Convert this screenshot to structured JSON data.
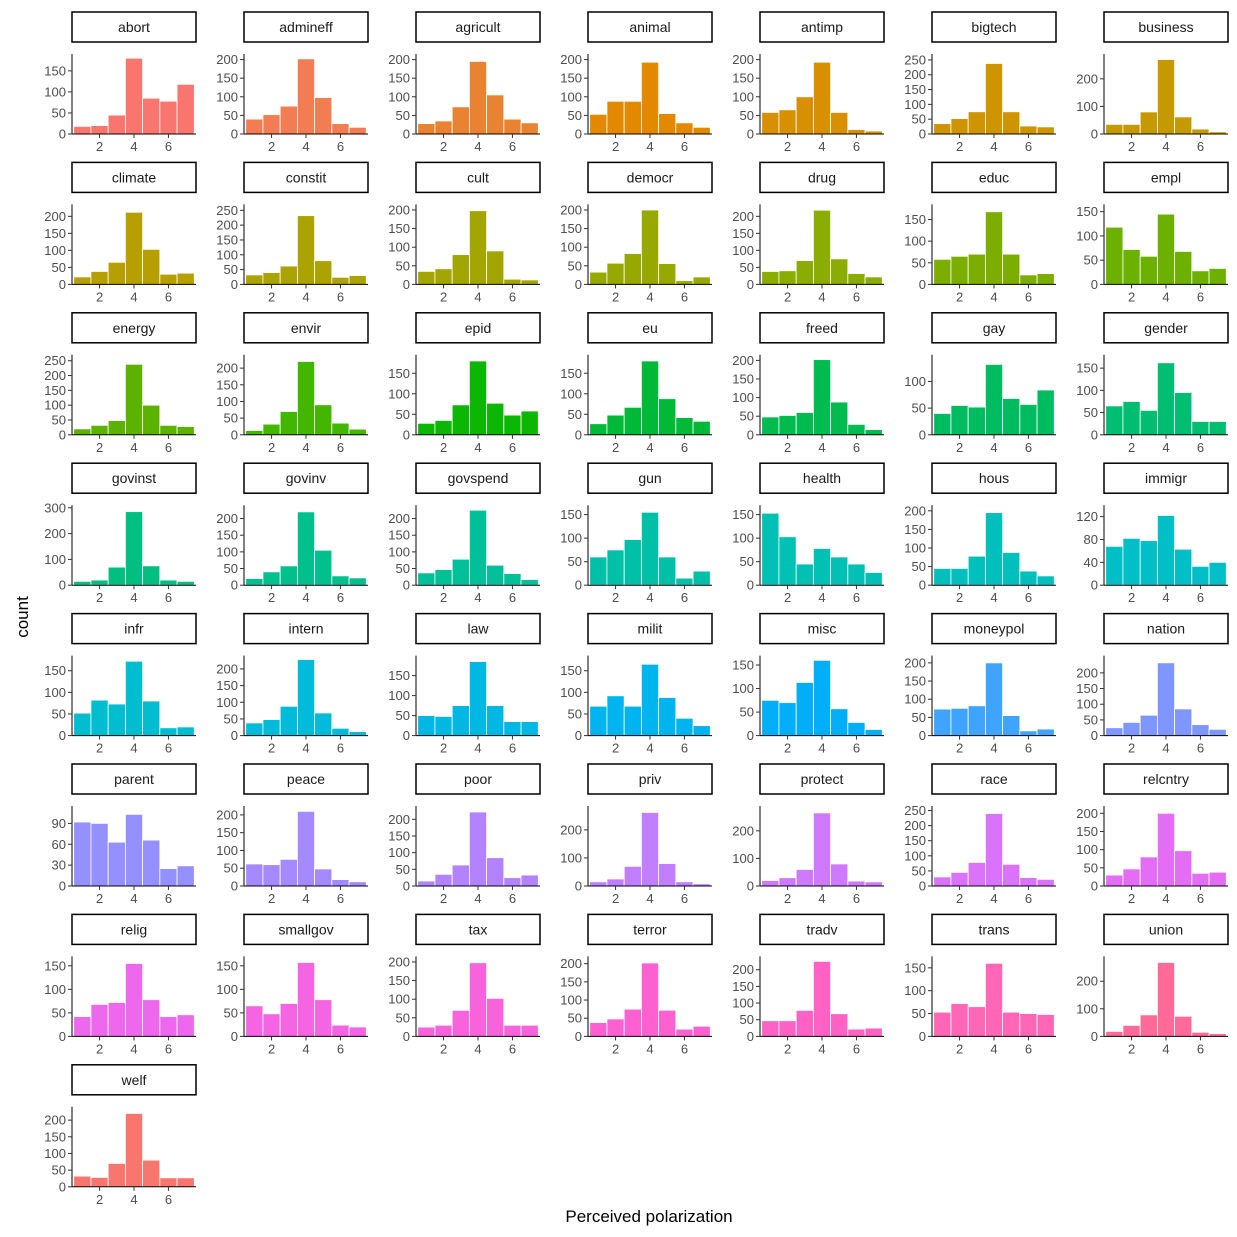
{
  "chart_data": {
    "type": "bar",
    "subtype": "faceted-histogram",
    "xlabel": "Perceived polarization",
    "ylabel": "count",
    "x": [
      1,
      2,
      3,
      4,
      5,
      6,
      7
    ],
    "x_ticks": [
      2,
      4,
      6
    ],
    "xlim": [
      0.4,
      7.6
    ],
    "facet_columns": 7,
    "grid": false,
    "legend": "none",
    "panels": [
      {
        "name": "abort",
        "color": "#F8766D",
        "ylim": [
          0,
          190
        ],
        "y_ticks": [
          0,
          50,
          100,
          150
        ],
        "values": [
          18,
          20,
          45,
          180,
          85,
          78,
          118
        ]
      },
      {
        "name": "admineff",
        "color": "#F27D52",
        "ylim": [
          0,
          215
        ],
        "y_ticks": [
          0,
          50,
          100,
          150,
          200
        ],
        "values": [
          40,
          52,
          75,
          202,
          98,
          28,
          18
        ]
      },
      {
        "name": "agricult",
        "color": "#EA8331",
        "ylim": [
          0,
          215
        ],
        "y_ticks": [
          0,
          50,
          100,
          150,
          200
        ],
        "values": [
          28,
          35,
          73,
          195,
          105,
          40,
          30
        ]
      },
      {
        "name": "animal",
        "color": "#E38900",
        "ylim": [
          0,
          215
        ],
        "y_ticks": [
          0,
          50,
          100,
          150,
          200
        ],
        "values": [
          53,
          88,
          88,
          193,
          55,
          30,
          18
        ]
      },
      {
        "name": "antimp",
        "color": "#D89000",
        "ylim": [
          0,
          215
        ],
        "y_ticks": [
          0,
          50,
          100,
          150,
          200
        ],
        "values": [
          58,
          65,
          100,
          193,
          58,
          12,
          8
        ]
      },
      {
        "name": "bigtech",
        "color": "#CF9500",
        "ylim": [
          0,
          270
        ],
        "y_ticks": [
          0,
          50,
          100,
          150,
          200,
          250
        ],
        "values": [
          35,
          52,
          75,
          238,
          75,
          27,
          24
        ]
      },
      {
        "name": "business",
        "color": "#C49A00",
        "ylim": [
          0,
          290
        ],
        "y_ticks": [
          0,
          100,
          200
        ],
        "values": [
          35,
          35,
          80,
          270,
          62,
          18,
          8
        ]
      },
      {
        "name": "climate",
        "color": "#B89F00",
        "ylim": [
          0,
          235
        ],
        "y_ticks": [
          0,
          50,
          100,
          150,
          200
        ],
        "values": [
          22,
          38,
          65,
          212,
          103,
          30,
          33
        ]
      },
      {
        "name": "constit",
        "color": "#ABA300",
        "ylim": [
          0,
          270
        ],
        "y_ticks": [
          0,
          50,
          100,
          150,
          200,
          250
        ],
        "values": [
          32,
          40,
          62,
          232,
          80,
          24,
          30
        ]
      },
      {
        "name": "cult",
        "color": "#A3A500",
        "ylim": [
          0,
          215
        ],
        "y_ticks": [
          0,
          50,
          100,
          150,
          200
        ],
        "values": [
          35,
          42,
          80,
          198,
          90,
          14,
          12
        ]
      },
      {
        "name": "democr",
        "color": "#97A900",
        "ylim": [
          0,
          215
        ],
        "y_ticks": [
          0,
          50,
          100,
          150,
          200
        ],
        "values": [
          33,
          57,
          83,
          200,
          56,
          10,
          20
        ]
      },
      {
        "name": "drug",
        "color": "#8BAC00",
        "ylim": [
          0,
          235
        ],
        "y_ticks": [
          0,
          50,
          100,
          150,
          200
        ],
        "values": [
          38,
          40,
          70,
          218,
          75,
          32,
          22
        ]
      },
      {
        "name": "educ",
        "color": "#7CAE00",
        "ylim": [
          0,
          185
        ],
        "y_ticks": [
          0,
          50,
          100,
          150
        ],
        "values": [
          58,
          65,
          70,
          168,
          70,
          22,
          25
        ]
      },
      {
        "name": "empl",
        "color": "#6DB100",
        "ylim": [
          0,
          165
        ],
        "y_ticks": [
          0,
          50,
          100,
          150
        ],
        "values": [
          118,
          72,
          58,
          145,
          68,
          28,
          33
        ]
      },
      {
        "name": "energy",
        "color": "#5BB300",
        "ylim": [
          0,
          270
        ],
        "y_ticks": [
          0,
          50,
          100,
          150,
          200,
          250
        ],
        "values": [
          20,
          32,
          48,
          238,
          100,
          32,
          28
        ]
      },
      {
        "name": "envir",
        "color": "#43B600",
        "ylim": [
          0,
          240
        ],
        "y_ticks": [
          0,
          50,
          100,
          150,
          200
        ],
        "values": [
          13,
          32,
          70,
          220,
          90,
          35,
          17
        ]
      },
      {
        "name": "epid",
        "color": "#0BB702",
        "ylim": [
          0,
          195
        ],
        "y_ticks": [
          0,
          50,
          100,
          150
        ],
        "values": [
          28,
          35,
          73,
          180,
          77,
          48,
          58
        ]
      },
      {
        "name": "eu",
        "color": "#00B937",
        "ylim": [
          0,
          195
        ],
        "y_ticks": [
          0,
          50,
          100,
          150
        ],
        "values": [
          27,
          48,
          67,
          180,
          88,
          42,
          33
        ]
      },
      {
        "name": "freed",
        "color": "#00BB4E",
        "ylim": [
          0,
          215
        ],
        "y_ticks": [
          0,
          50,
          100,
          150,
          200
        ],
        "values": [
          48,
          52,
          60,
          202,
          88,
          28,
          14
        ]
      },
      {
        "name": "gay",
        "color": "#00BC61",
        "ylim": [
          0,
          150
        ],
        "y_ticks": [
          0,
          50,
          100
        ],
        "values": [
          40,
          55,
          52,
          132,
          68,
          57,
          84
        ]
      },
      {
        "name": "gender",
        "color": "#00BE71",
        "ylim": [
          0,
          180
        ],
        "y_ticks": [
          0,
          50,
          100,
          150
        ],
        "values": [
          65,
          75,
          55,
          162,
          95,
          30,
          30
        ]
      },
      {
        "name": "govinst",
        "color": "#00BF80",
        "ylim": [
          0,
          310
        ],
        "y_ticks": [
          0,
          100,
          200,
          300
        ],
        "values": [
          15,
          20,
          70,
          285,
          75,
          20,
          15
        ]
      },
      {
        "name": "govinv",
        "color": "#00C08D",
        "ylim": [
          0,
          240
        ],
        "y_ticks": [
          0,
          50,
          100,
          150,
          200
        ],
        "values": [
          20,
          40,
          58,
          220,
          105,
          28,
          22
        ]
      },
      {
        "name": "govspend",
        "color": "#00C09A",
        "ylim": [
          0,
          240
        ],
        "y_ticks": [
          0,
          50,
          100,
          150,
          200
        ],
        "values": [
          37,
          47,
          78,
          225,
          60,
          35,
          17
        ]
      },
      {
        "name": "gun",
        "color": "#00C1A7",
        "ylim": [
          0,
          170
        ],
        "y_ticks": [
          0,
          50,
          100,
          150
        ],
        "values": [
          60,
          75,
          97,
          155,
          60,
          15,
          30
        ]
      },
      {
        "name": "health",
        "color": "#00C1B3",
        "ylim": [
          0,
          170
        ],
        "y_ticks": [
          0,
          50,
          100,
          150
        ],
        "values": [
          153,
          103,
          45,
          78,
          60,
          45,
          27
        ]
      },
      {
        "name": "hous",
        "color": "#00C0BE",
        "ylim": [
          0,
          215
        ],
        "y_ticks": [
          0,
          50,
          100,
          150,
          200
        ],
        "values": [
          45,
          45,
          78,
          195,
          88,
          38,
          25
        ]
      },
      {
        "name": "immigr",
        "color": "#00BFC7",
        "ylim": [
          0,
          140
        ],
        "y_ticks": [
          0,
          40,
          80,
          120
        ],
        "values": [
          68,
          82,
          78,
          122,
          63,
          33,
          40
        ]
      },
      {
        "name": "infr",
        "color": "#00BDD0",
        "ylim": [
          0,
          185
        ],
        "y_ticks": [
          0,
          50,
          100,
          150
        ],
        "values": [
          52,
          82,
          73,
          172,
          80,
          18,
          20
        ]
      },
      {
        "name": "intern",
        "color": "#00BBDA",
        "ylim": [
          0,
          240
        ],
        "y_ticks": [
          0,
          50,
          100,
          150,
          200
        ],
        "values": [
          38,
          48,
          88,
          228,
          68,
          22,
          12
        ]
      },
      {
        "name": "law",
        "color": "#00B8E3",
        "ylim": [
          0,
          200
        ],
        "y_ticks": [
          0,
          50,
          100,
          150
        ],
        "values": [
          50,
          48,
          75,
          185,
          75,
          35,
          35
        ]
      },
      {
        "name": "milit",
        "color": "#00B4EF",
        "ylim": [
          0,
          185
        ],
        "y_ticks": [
          0,
          50,
          100,
          150
        ],
        "values": [
          68,
          92,
          68,
          165,
          88,
          40,
          23
        ]
      },
      {
        "name": "misc",
        "color": "#00AFF8",
        "ylim": [
          0,
          170
        ],
        "y_ticks": [
          0,
          50,
          100,
          150
        ],
        "values": [
          75,
          70,
          113,
          160,
          57,
          28,
          13
        ]
      },
      {
        "name": "moneypol",
        "color": "#3EA4FF",
        "ylim": [
          0,
          220
        ],
        "y_ticks": [
          0,
          50,
          100,
          150,
          200
        ],
        "values": [
          73,
          75,
          82,
          200,
          55,
          13,
          18
        ]
      },
      {
        "name": "nation",
        "color": "#7F96FF",
        "ylim": [
          0,
          255
        ],
        "y_ticks": [
          0,
          50,
          100,
          150,
          200
        ],
        "values": [
          25,
          42,
          65,
          232,
          85,
          35,
          20
        ]
      },
      {
        "name": "parent",
        "color": "#9590FF",
        "ylim": [
          0,
          115
        ],
        "y_ticks": [
          0,
          30,
          60,
          90
        ],
        "values": [
          92,
          90,
          63,
          103,
          66,
          25,
          29
        ]
      },
      {
        "name": "peace",
        "color": "#A58AFF",
        "ylim": [
          0,
          225
        ],
        "y_ticks": [
          0,
          50,
          100,
          150,
          200
        ],
        "values": [
          62,
          60,
          75,
          210,
          48,
          18,
          12
        ]
      },
      {
        "name": "poor",
        "color": "#B383FF",
        "ylim": [
          0,
          240
        ],
        "y_ticks": [
          0,
          50,
          100,
          150,
          200
        ],
        "values": [
          15,
          35,
          63,
          222,
          85,
          25,
          33
        ]
      },
      {
        "name": "priv",
        "color": "#C17FFF",
        "ylim": [
          0,
          285
        ],
        "y_ticks": [
          0,
          100,
          200
        ],
        "values": [
          15,
          25,
          70,
          262,
          80,
          15,
          8
        ]
      },
      {
        "name": "protect",
        "color": "#CE79FF",
        "ylim": [
          0,
          290
        ],
        "y_ticks": [
          0,
          100,
          200
        ],
        "values": [
          20,
          30,
          60,
          265,
          80,
          18,
          15
        ]
      },
      {
        "name": "race",
        "color": "#DB72FB",
        "ylim": [
          0,
          265
        ],
        "y_ticks": [
          0,
          50,
          100,
          150,
          200,
          250
        ],
        "values": [
          30,
          45,
          78,
          240,
          72,
          28,
          22
        ]
      },
      {
        "name": "relcntry",
        "color": "#E46DF6",
        "ylim": [
          0,
          220
        ],
        "y_ticks": [
          0,
          50,
          100,
          150,
          200
        ],
        "values": [
          30,
          47,
          80,
          200,
          97,
          35,
          38
        ]
      },
      {
        "name": "relig",
        "color": "#ED68ED",
        "ylim": [
          0,
          170
        ],
        "y_ticks": [
          0,
          50,
          100,
          150
        ],
        "values": [
          42,
          68,
          72,
          155,
          78,
          42,
          46
        ]
      },
      {
        "name": "smallgov",
        "color": "#F464E3",
        "ylim": [
          0,
          170
        ],
        "y_ticks": [
          0,
          50,
          100,
          150
        ],
        "values": [
          65,
          48,
          70,
          157,
          78,
          24,
          20
        ]
      },
      {
        "name": "tax",
        "color": "#F962DD",
        "ylim": [
          0,
          215
        ],
        "y_ticks": [
          0,
          50,
          100,
          150,
          200
        ],
        "values": [
          25,
          30,
          70,
          198,
          102,
          30,
          30
        ]
      },
      {
        "name": "terror",
        "color": "#FD61D1",
        "ylim": [
          0,
          220
        ],
        "y_ticks": [
          0,
          50,
          100,
          150,
          200
        ],
        "values": [
          38,
          48,
          75,
          202,
          72,
          20,
          28
        ]
      },
      {
        "name": "tradv",
        "color": "#FF62C4",
        "ylim": [
          0,
          240
        ],
        "y_ticks": [
          0,
          50,
          100,
          150,
          200
        ],
        "values": [
          47,
          47,
          78,
          225,
          68,
          22,
          25
        ]
      },
      {
        "name": "trans",
        "color": "#FF66B6",
        "ylim": [
          0,
          175
        ],
        "y_ticks": [
          0,
          50,
          100,
          150
        ],
        "values": [
          53,
          72,
          65,
          160,
          53,
          50,
          48
        ]
      },
      {
        "name": "union",
        "color": "#FF6A98",
        "ylim": [
          0,
          290
        ],
        "y_ticks": [
          0,
          100,
          200
        ],
        "values": [
          18,
          40,
          78,
          268,
          73,
          15,
          10
        ]
      },
      {
        "name": "welf",
        "color": "#F8766D",
        "ylim": [
          0,
          240
        ],
        "y_ticks": [
          0,
          50,
          100,
          150,
          200
        ],
        "values": [
          32,
          28,
          70,
          220,
          80,
          27,
          27
        ]
      }
    ]
  }
}
